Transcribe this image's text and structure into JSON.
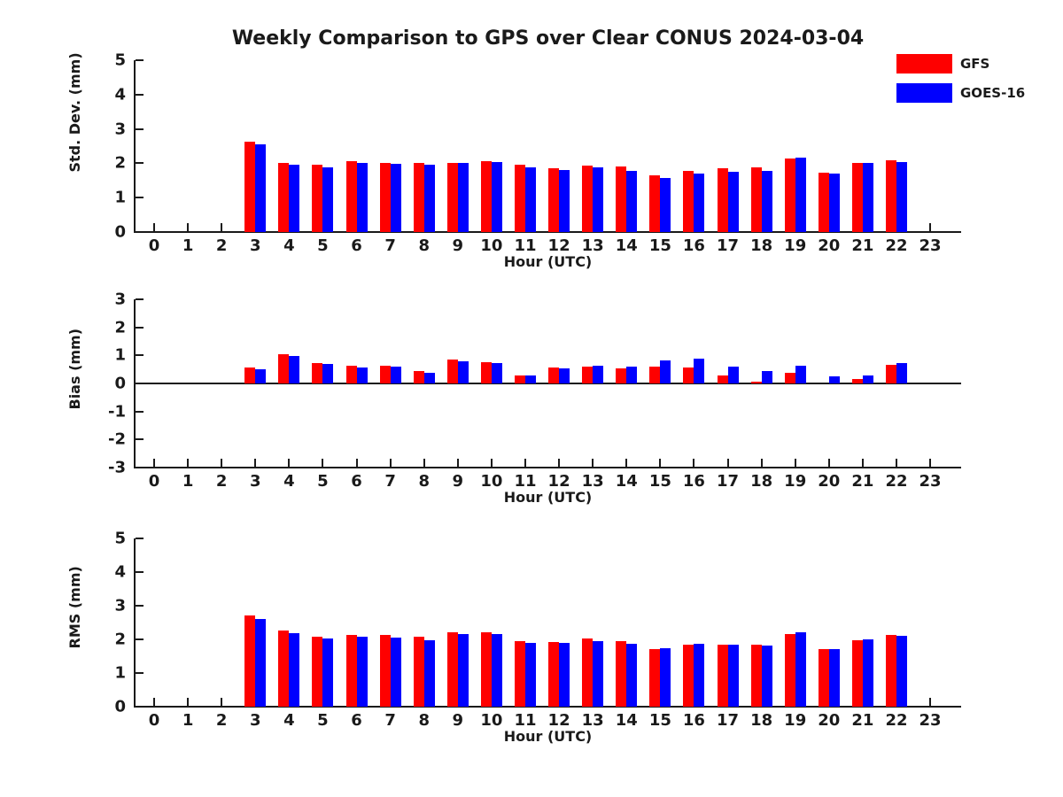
{
  "title": "Weekly Comparison to GPS over Clear CONUS 2024-03-04",
  "legend": {
    "items": [
      {
        "label": "GFS",
        "color": "#fe0000"
      },
      {
        "label": "GOES-16",
        "color": "#0000fe"
      }
    ]
  },
  "colors": {
    "gfs_red": "#fe0000",
    "goes_blue": "#0000fe",
    "axis": "#1a1a1a"
  },
  "chart_data": [
    {
      "type": "bar",
      "panel": "std-dev",
      "title": "",
      "xlabel": "Hour (UTC)",
      "ylabel": "Std. Dev. (mm)",
      "ylim": [
        0,
        5
      ],
      "yticks": [
        0,
        1,
        2,
        3,
        4,
        5
      ],
      "grid": false,
      "legend_position": "upper-right-outside",
      "categories": [
        "0",
        "1",
        "2",
        "3",
        "4",
        "5",
        "6",
        "7",
        "8",
        "9",
        "10",
        "11",
        "12",
        "13",
        "14",
        "15",
        "16",
        "17",
        "18",
        "19",
        "20",
        "21",
        "22",
        "23"
      ],
      "series": [
        {
          "name": "GFS",
          "color": "#fe0000",
          "values": [
            0,
            0,
            0,
            2.63,
            2.0,
            1.95,
            2.05,
            2.02,
            2.02,
            2.02,
            2.07,
            1.95,
            1.85,
            1.93,
            1.9,
            1.65,
            1.78,
            1.86,
            1.87,
            2.15,
            1.72,
            2.0,
            2.08,
            0
          ]
        },
        {
          "name": "GOES-16",
          "color": "#0000fe",
          "values": [
            0,
            0,
            0,
            2.55,
            1.95,
            1.89,
            2.01,
            1.98,
            1.95,
            2.0,
            2.03,
            1.87,
            1.8,
            1.88,
            1.78,
            1.57,
            1.7,
            1.75,
            1.79,
            2.16,
            1.7,
            2.0,
            2.03,
            0
          ]
        }
      ]
    },
    {
      "type": "bar",
      "panel": "bias",
      "title": "",
      "xlabel": "Hour (UTC)",
      "ylabel": "Bias (mm)",
      "ylim": [
        -3,
        3
      ],
      "yticks": [
        -3,
        -2,
        -1,
        0,
        1,
        2,
        3
      ],
      "grid": false,
      "zero_line": true,
      "categories": [
        "0",
        "1",
        "2",
        "3",
        "4",
        "5",
        "6",
        "7",
        "8",
        "9",
        "10",
        "11",
        "12",
        "13",
        "14",
        "15",
        "16",
        "17",
        "18",
        "19",
        "20",
        "21",
        "22",
        "23"
      ],
      "series": [
        {
          "name": "GFS",
          "color": "#fe0000",
          "values": [
            0,
            0,
            0,
            0.58,
            1.03,
            0.74,
            0.62,
            0.64,
            0.43,
            0.86,
            0.77,
            0.29,
            0.57,
            0.6,
            0.55,
            0.6,
            0.57,
            0.28,
            0.07,
            0.37,
            0.0,
            0.15,
            0.67,
            0
          ]
        },
        {
          "name": "GOES-16",
          "color": "#0000fe",
          "values": [
            0,
            0,
            0,
            0.52,
            0.98,
            0.68,
            0.56,
            0.61,
            0.38,
            0.78,
            0.74,
            0.27,
            0.53,
            0.62,
            0.61,
            0.82,
            0.88,
            0.6,
            0.45,
            0.63,
            0.26,
            0.3,
            0.73,
            0
          ]
        }
      ]
    },
    {
      "type": "bar",
      "panel": "rms",
      "title": "",
      "xlabel": "Hour (UTC)",
      "ylabel": "RMS (mm)",
      "ylim": [
        0,
        5
      ],
      "yticks": [
        0,
        1,
        2,
        3,
        4,
        5
      ],
      "grid": false,
      "categories": [
        "0",
        "1",
        "2",
        "3",
        "4",
        "5",
        "6",
        "7",
        "8",
        "9",
        "10",
        "11",
        "12",
        "13",
        "14",
        "15",
        "16",
        "17",
        "18",
        "19",
        "20",
        "21",
        "22",
        "23"
      ],
      "series": [
        {
          "name": "GFS",
          "color": "#fe0000",
          "values": [
            0,
            0,
            0,
            2.7,
            2.26,
            2.09,
            2.13,
            2.13,
            2.09,
            2.21,
            2.22,
            1.96,
            1.93,
            2.02,
            1.94,
            1.72,
            1.84,
            1.85,
            1.85,
            2.15,
            1.7,
            1.98,
            2.13,
            0
          ]
        },
        {
          "name": "GOES-16",
          "color": "#0000fe",
          "values": [
            0,
            0,
            0,
            2.61,
            2.18,
            2.02,
            2.07,
            2.06,
            1.98,
            2.15,
            2.17,
            1.89,
            1.89,
            1.96,
            1.87,
            1.75,
            1.88,
            1.83,
            1.82,
            2.21,
            1.7,
            2.01,
            2.11,
            0
          ]
        }
      ]
    }
  ]
}
